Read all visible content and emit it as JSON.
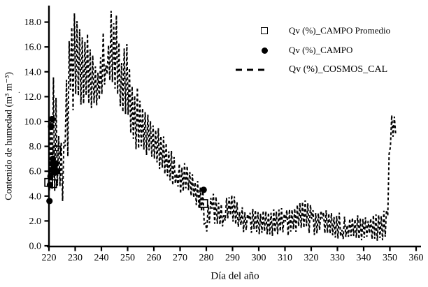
{
  "figure": {
    "background": "#ffffff",
    "ink_color": "#000000"
  },
  "axes": {
    "x": {
      "title": "Día del año",
      "min": 220,
      "max": 360,
      "tick_values": [
        220,
        230,
        240,
        250,
        260,
        270,
        280,
        290,
        300,
        310,
        320,
        330,
        340,
        350,
        360
      ],
      "tick_labels": [
        "220",
        "230",
        "240",
        "250",
        "260",
        "270",
        "280",
        "290",
        "300",
        "310",
        "320",
        "330",
        "340",
        "350",
        "360"
      ]
    },
    "y": {
      "title": "Contenido de humedad (m³ m⁻³)",
      "min": 0,
      "max": 18,
      "tick_values": [
        0,
        2,
        4,
        6,
        8,
        10,
        12,
        14,
        16,
        18
      ],
      "tick_labels": [
        "0.0",
        "2.0",
        "4.0",
        "6.0",
        "8.0",
        "10.0",
        "12.0",
        "14.0",
        "16.0",
        "18.0"
      ]
    }
  },
  "legend": {
    "items": [
      {
        "label": "Qv (%)_CAMPO Promedio",
        "marker": "open-square"
      },
      {
        "label": "Qv (%)_CAMPO",
        "marker": "filled-circle"
      },
      {
        "label": "Qv (%)_COSMOS_CAL",
        "marker": "dashed-line"
      }
    ]
  },
  "stray_mark": ".",
  "chart_data": {
    "type": "line",
    "title": "",
    "xlabel": "Día del año",
    "ylabel": "Contenido de humedad (m³ m⁻³)",
    "xlim": [
      220,
      360
    ],
    "ylim": [
      0,
      19.8
    ],
    "grid": false,
    "legend_position": "upper-right-inside",
    "series": [
      {
        "name": "Qv (%)_CAMPO Promedio",
        "type": "scatter",
        "marker": "open-square",
        "color": "#000000",
        "points": [
          [
            219.9,
            5.1
          ],
          [
            221.4,
            5.0
          ],
          [
            223.0,
            7.7
          ],
          [
            279.0,
            3.4
          ]
        ]
      },
      {
        "name": "Qv (%)_CAMPO",
        "type": "scatter",
        "marker": "filled-circle",
        "color": "#000000",
        "points": [
          [
            220.2,
            3.6
          ],
          [
            220.4,
            4.9
          ],
          [
            220.6,
            5.6
          ],
          [
            220.9,
            6.1
          ],
          [
            221.2,
            6.6
          ],
          [
            221.5,
            7.0
          ],
          [
            221.9,
            6.3
          ],
          [
            222.3,
            5.9
          ],
          [
            222.7,
            6.6
          ],
          [
            223.1,
            6.0
          ],
          [
            220.8,
            9.6
          ],
          [
            221.2,
            10.2
          ],
          [
            279.0,
            4.5
          ]
        ]
      },
      {
        "name": "Qv (%)_COSMOS_CAL",
        "type": "line",
        "style": "dashed",
        "color": "#000000",
        "description": "High-frequency (≈1 day period) oscillating dashed series; envelope keyframes as [day, min, max]. Values rise from ~5 at day 220 to peaks ~19.6 around days 229-246, decline steadily to a ~0.5-3 baseline from day 285 to 348, then spike to ~11 at day 350.",
        "oscillation_period_days": 1,
        "envelope": [
          [
            219.7,
            3.6,
            6.8
          ],
          [
            220,
            3.6,
            7.0
          ],
          [
            221,
            3.9,
            13.2
          ],
          [
            222,
            3.8,
            14.5
          ],
          [
            223,
            4.2,
            12.0
          ],
          [
            224,
            3.8,
            8.2
          ],
          [
            225,
            3.4,
            8.6
          ],
          [
            226,
            3.0,
            9.5
          ],
          [
            227,
            4.5,
            16.3
          ],
          [
            228,
            8.5,
            17.6
          ],
          [
            229,
            10.5,
            19.2
          ],
          [
            230,
            11.5,
            19.0
          ],
          [
            231,
            10.8,
            17.8
          ],
          [
            232,
            11.2,
            18.6
          ],
          [
            233,
            10.2,
            17.4
          ],
          [
            234,
            10.6,
            18.0
          ],
          [
            235,
            10.0,
            17.0
          ],
          [
            236,
            9.6,
            16.2
          ],
          [
            237,
            10.2,
            15.2
          ],
          [
            238,
            11.2,
            14.6
          ],
          [
            239,
            11.4,
            14.2
          ],
          [
            240,
            11.0,
            15.6
          ],
          [
            241,
            12.0,
            18.4
          ],
          [
            242,
            12.2,
            19.0
          ],
          [
            243,
            12.4,
            19.6
          ],
          [
            244,
            11.6,
            18.6
          ],
          [
            245,
            11.2,
            18.0
          ],
          [
            246,
            11.4,
            18.8
          ],
          [
            247,
            10.2,
            16.4
          ],
          [
            248,
            9.4,
            14.4
          ],
          [
            249,
            9.8,
            17.0
          ],
          [
            250,
            9.2,
            16.8
          ],
          [
            251,
            8.4,
            14.0
          ],
          [
            252,
            8.0,
            13.5
          ],
          [
            253,
            7.6,
            13.0
          ],
          [
            254,
            7.8,
            12.8
          ],
          [
            255,
            7.2,
            12.0
          ],
          [
            256,
            7.0,
            11.5
          ],
          [
            257,
            6.8,
            11.0
          ],
          [
            258,
            7.0,
            11.2
          ],
          [
            259,
            6.4,
            10.4
          ],
          [
            260,
            6.2,
            10.0
          ],
          [
            262,
            5.8,
            9.4
          ],
          [
            264,
            5.4,
            8.7
          ],
          [
            266,
            5.0,
            8.0
          ],
          [
            268,
            4.4,
            7.2
          ],
          [
            270,
            4.0,
            6.6
          ],
          [
            272,
            4.2,
            6.8
          ],
          [
            274,
            3.8,
            6.3
          ],
          [
            276,
            3.0,
            5.4
          ],
          [
            278,
            2.4,
            5.0
          ],
          [
            279,
            1.2,
            4.6
          ],
          [
            280,
            0.4,
            3.2
          ],
          [
            281,
            1.6,
            4.0
          ],
          [
            282,
            1.8,
            4.3
          ],
          [
            284,
            1.6,
            4.0
          ],
          [
            286,
            1.3,
            3.7
          ],
          [
            288,
            1.8,
            4.3
          ],
          [
            290,
            1.9,
            4.5
          ],
          [
            292,
            1.4,
            3.8
          ],
          [
            294,
            1.0,
            3.2
          ],
          [
            296,
            0.8,
            2.9
          ],
          [
            298,
            0.9,
            3.1
          ],
          [
            300,
            0.7,
            2.8
          ],
          [
            302,
            0.8,
            3.0
          ],
          [
            304,
            0.6,
            2.7
          ],
          [
            306,
            0.8,
            3.0
          ],
          [
            308,
            0.9,
            3.2
          ],
          [
            310,
            0.7,
            2.9
          ],
          [
            312,
            0.8,
            3.1
          ],
          [
            314,
            1.0,
            3.5
          ],
          [
            316,
            1.1,
            3.7
          ],
          [
            318,
            1.0,
            3.8
          ],
          [
            320,
            0.8,
            3.2
          ],
          [
            322,
            0.6,
            2.9
          ],
          [
            324,
            0.8,
            3.3
          ],
          [
            326,
            0.6,
            3.0
          ],
          [
            328,
            0.5,
            2.7
          ],
          [
            330,
            0.5,
            2.8
          ],
          [
            332,
            0.4,
            2.5
          ],
          [
            334,
            0.5,
            2.7
          ],
          [
            336,
            0.3,
            2.4
          ],
          [
            338,
            0.1,
            2.5
          ],
          [
            340,
            0.3,
            2.6
          ],
          [
            342,
            0.2,
            2.4
          ],
          [
            344,
            0.1,
            2.6
          ],
          [
            346,
            0.05,
            2.5
          ],
          [
            347,
            0.2,
            2.7
          ],
          [
            348,
            0.4,
            2.9
          ],
          [
            348.8,
            0.8,
            3.0
          ],
          [
            349.4,
            2.5,
            5.5
          ],
          [
            350,
            7.0,
            9.5
          ],
          [
            350.5,
            8.2,
            10.9
          ],
          [
            351,
            8.4,
            11.0
          ],
          [
            351.8,
            8.0,
            10.6
          ],
          [
            352.2,
            8.6,
            10.2
          ]
        ]
      }
    ]
  }
}
